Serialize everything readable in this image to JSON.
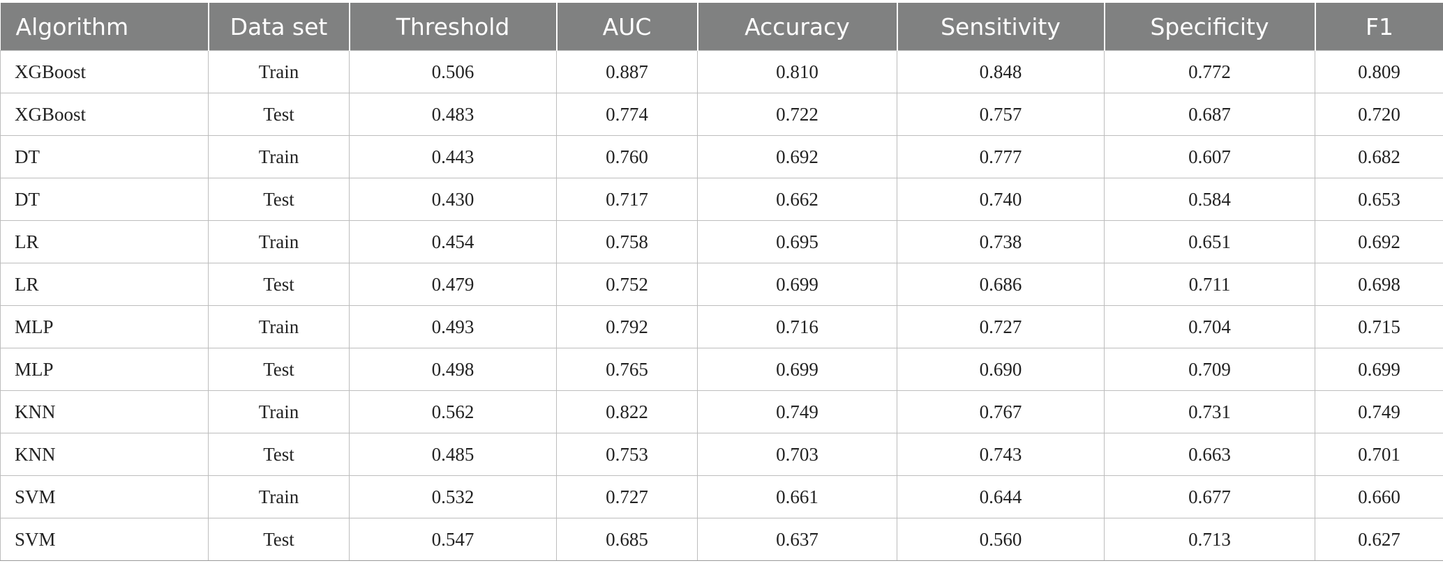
{
  "table": {
    "headers": [
      "Algorithm",
      "Data set",
      "Threshold",
      "AUC",
      "Accuracy",
      "Sensitivity",
      "Specificity",
      "F1"
    ],
    "rows": [
      [
        "XGBoost",
        "Train",
        "0.506",
        "0.887",
        "0.810",
        "0.848",
        "0.772",
        "0.809"
      ],
      [
        "XGBoost",
        "Test",
        "0.483",
        "0.774",
        "0.722",
        "0.757",
        "0.687",
        "0.720"
      ],
      [
        "DT",
        "Train",
        "0.443",
        "0.760",
        "0.692",
        "0.777",
        "0.607",
        "0.682"
      ],
      [
        "DT",
        "Test",
        "0.430",
        "0.717",
        "0.662",
        "0.740",
        "0.584",
        "0.653"
      ],
      [
        "LR",
        "Train",
        "0.454",
        "0.758",
        "0.695",
        "0.738",
        "0.651",
        "0.692"
      ],
      [
        "LR",
        "Test",
        "0.479",
        "0.752",
        "0.699",
        "0.686",
        "0.711",
        "0.698"
      ],
      [
        "MLP",
        "Train",
        "0.493",
        "0.792",
        "0.716",
        "0.727",
        "0.704",
        "0.715"
      ],
      [
        "MLP",
        "Test",
        "0.498",
        "0.765",
        "0.699",
        "0.690",
        "0.709",
        "0.699"
      ],
      [
        "KNN",
        "Train",
        "0.562",
        "0.822",
        "0.749",
        "0.767",
        "0.731",
        "0.749"
      ],
      [
        "KNN",
        "Test",
        "0.485",
        "0.753",
        "0.703",
        "0.743",
        "0.663",
        "0.701"
      ],
      [
        "SVM",
        "Train",
        "0.532",
        "0.727",
        "0.661",
        "0.644",
        "0.677",
        "0.660"
      ],
      [
        "SVM",
        "Test",
        "0.547",
        "0.685",
        "0.637",
        "0.560",
        "0.713",
        "0.627"
      ]
    ]
  },
  "colors": {
    "header_bg": "#808181",
    "header_text": "#ffffff",
    "grid_line": "#bdbdbd",
    "cell_text": "#222222"
  }
}
